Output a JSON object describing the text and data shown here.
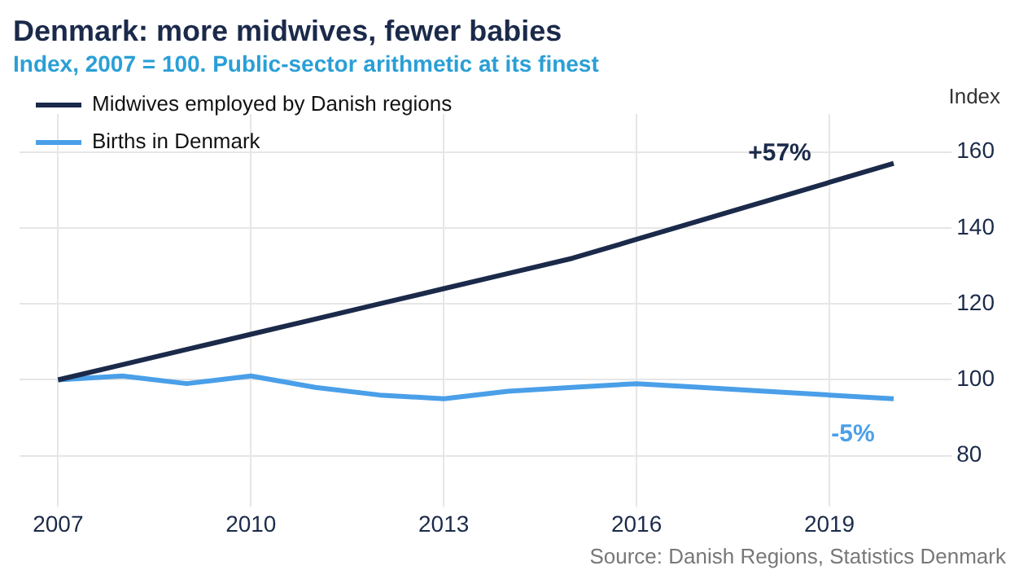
{
  "chart_data": {
    "type": "line",
    "title": "Denmark: more midwives, fewer babies",
    "subtitle": "Index, 2007 = 100. Public-sector arithmetic at its finest",
    "ylabel": "Index",
    "x": [
      2007,
      2008,
      2009,
      2010,
      2011,
      2012,
      2013,
      2014,
      2015,
      2016,
      2017,
      2018,
      2019,
      2020
    ],
    "series": [
      {
        "name": "Midwives employed by Danish regions",
        "color": "#1b2a4a",
        "values": [
          100,
          104,
          108,
          112,
          116,
          120,
          124,
          128,
          132,
          137,
          142,
          147,
          152,
          157
        ]
      },
      {
        "name": "Births in Denmark",
        "color": "#4a9fe8",
        "values": [
          100,
          101,
          99,
          101,
          98,
          96,
          95,
          97,
          98,
          99,
          98,
          97,
          96,
          95
        ]
      }
    ],
    "xlim": [
      2006.4,
      2020.7
    ],
    "xticks": [
      2007,
      2010,
      2013,
      2016,
      2019
    ],
    "ylim": [
      70,
      170
    ],
    "yticks": [
      80,
      100,
      120,
      140,
      160
    ],
    "grid": true,
    "legend": "top left",
    "marker": "none",
    "line_style": "solid",
    "annotations": [
      "+57%",
      "-5%",
      "Source: Danish Regions, Statistics Denmark"
    ]
  }
}
